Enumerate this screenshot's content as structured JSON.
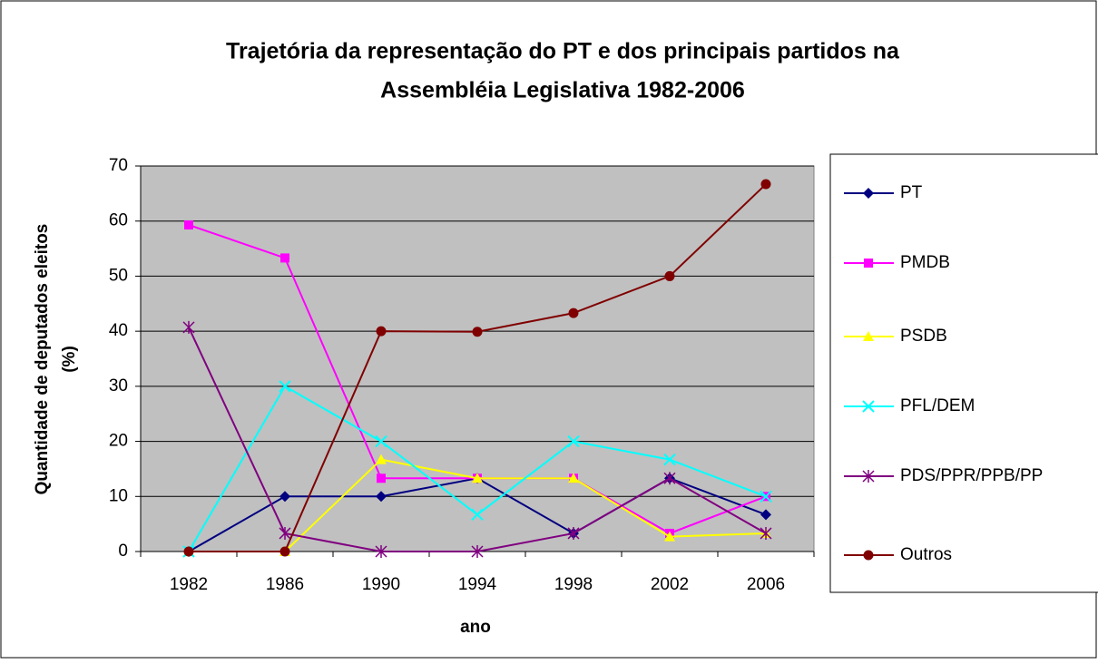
{
  "chart_data": {
    "type": "line",
    "title": [
      "Trajetória da representação do PT e dos principais partidos na",
      "Assembléia Legislativa 1982-2006"
    ],
    "x_label": "ano",
    "y_label": [
      "Quantidade de deputados eleitos",
      "(%)"
    ],
    "categories": [
      "1982",
      "1986",
      "1990",
      "1994",
      "1998",
      "2002",
      "2006"
    ],
    "ylim": [
      0,
      70
    ],
    "yticks": [
      0,
      10,
      20,
      30,
      40,
      50,
      60,
      70
    ],
    "grid": true,
    "legend": "right",
    "series": [
      {
        "name": "PT",
        "color": "#000080",
        "marker": "diamond",
        "values": [
          0,
          10,
          10,
          13.3,
          3.3,
          13.3,
          6.7
        ]
      },
      {
        "name": "PMDB",
        "color": "#FF00FF",
        "marker": "square",
        "values": [
          59.3,
          53.3,
          13.3,
          13.3,
          13.3,
          3.3,
          10
        ]
      },
      {
        "name": "PSDB",
        "color": "#FFFF00",
        "marker": "triangle",
        "values": [
          0,
          0,
          16.7,
          13.3,
          13.3,
          2.7,
          3.3
        ]
      },
      {
        "name": "PFL/DEM",
        "color": "#00FFFF",
        "marker": "x",
        "values": [
          0,
          30,
          20,
          6.7,
          20,
          16.7,
          10
        ]
      },
      {
        "name": "PDS/PPR/PPB/PP",
        "color": "#800080",
        "marker": "asterisk",
        "values": [
          40.7,
          3.3,
          0,
          0,
          3.3,
          13.3,
          3.3
        ]
      },
      {
        "name": "Outros",
        "color": "#800000",
        "marker": "circle",
        "values": [
          0,
          0,
          40,
          39.9,
          43.3,
          50,
          66.7
        ]
      }
    ]
  }
}
